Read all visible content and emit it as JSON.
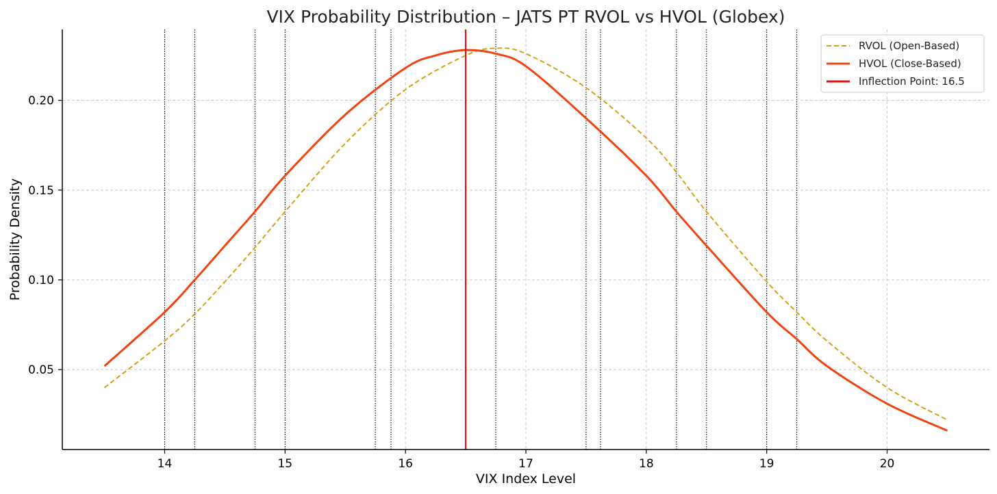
{
  "chart_data": {
    "type": "line",
    "title": "VIX Probability Distribution – JATS PT RVOL vs HVOL (Globex)",
    "xlabel": "VIX Index Level",
    "ylabel": "Probability Density",
    "xlim": [
      13.15,
      20.85
    ],
    "ylim": [
      0.0055,
      0.2395
    ],
    "xticks": [
      14,
      15,
      16,
      17,
      18,
      19,
      20
    ],
    "yticks": [
      0.05,
      0.1,
      0.15,
      0.2
    ],
    "ytick_labels": [
      "0.05",
      "0.10",
      "0.15",
      "0.20"
    ],
    "grid": true,
    "legend_position": "top-right",
    "series": [
      {
        "name": "RVOL (Open-Based)",
        "style": "dashed",
        "color": "#D4A017",
        "x": [
          13.5,
          14.0,
          14.25,
          14.5,
          14.75,
          15.0,
          15.5,
          16.0,
          16.5,
          16.75,
          17.0,
          17.5,
          18.0,
          18.25,
          18.5,
          19.0,
          19.25,
          19.5,
          20.0,
          20.5
        ],
        "y": [
          0.04,
          0.066,
          0.081,
          0.099,
          0.118,
          0.138,
          0.176,
          0.206,
          0.225,
          0.229,
          0.226,
          0.207,
          0.179,
          0.16,
          0.138,
          0.099,
          0.082,
          0.066,
          0.04,
          0.022
        ]
      },
      {
        "name": "HVOL (Close-Based)",
        "style": "solid",
        "color": "#EE4411",
        "x": [
          13.5,
          14.0,
          14.25,
          14.5,
          14.75,
          15.0,
          15.5,
          16.0,
          16.25,
          16.5,
          16.75,
          17.0,
          17.5,
          18.0,
          18.25,
          18.5,
          19.0,
          19.25,
          19.5,
          20.0,
          20.5
        ],
        "y": [
          0.052,
          0.082,
          0.1,
          0.119,
          0.138,
          0.158,
          0.192,
          0.218,
          0.225,
          0.228,
          0.226,
          0.219,
          0.19,
          0.158,
          0.138,
          0.119,
          0.082,
          0.067,
          0.052,
          0.031,
          0.016
        ]
      },
      {
        "name": "Inflection Point: 16.5",
        "style": "vertical",
        "color": "#DD1111",
        "x": [
          16.5,
          16.5
        ],
        "y": [
          0.0055,
          0.2395
        ]
      }
    ],
    "reference_lines_x": [
      14.0,
      14.25,
      14.75,
      15.0,
      15.75,
      15.88,
      16.75,
      17.5,
      17.62,
      18.25,
      18.5,
      19.0,
      19.25
    ]
  }
}
